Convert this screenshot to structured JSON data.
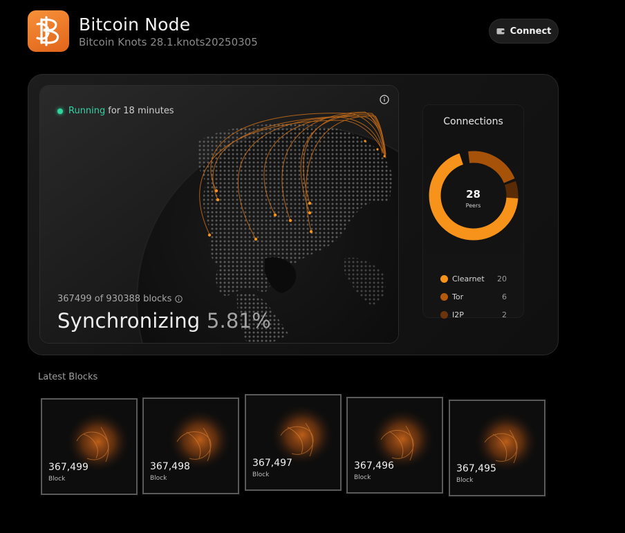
{
  "header": {
    "title": "Bitcoin Node",
    "subtitle": "Bitcoin Knots 28.1.knots20250305",
    "connect_label": "Connect"
  },
  "status": {
    "state": "Running",
    "duration": "for 18 minutes",
    "blocks_text": "367499 of 930388 blocks",
    "sync_label": "Synchronizing",
    "sync_percent": "5.81%"
  },
  "connections": {
    "title": "Connections",
    "peers_count": "28",
    "peers_label": "Peers",
    "items": [
      {
        "label": "Clearnet",
        "value": "20",
        "color": "#f7931a"
      },
      {
        "label": "Tor",
        "value": "6",
        "color": "#b35a0c"
      },
      {
        "label": "I2P",
        "value": "2",
        "color": "#6b340a"
      }
    ]
  },
  "latest_blocks": {
    "title": "Latest Blocks",
    "items": [
      {
        "number": "367,499",
        "label": "Block"
      },
      {
        "number": "367,498",
        "label": "Block"
      },
      {
        "number": "367,497",
        "label": "Block"
      },
      {
        "number": "367,496",
        "label": "Block"
      },
      {
        "number": "367,495",
        "label": "Block"
      }
    ]
  },
  "colors": {
    "accent": "#f7931a",
    "running": "#34d1a2"
  }
}
